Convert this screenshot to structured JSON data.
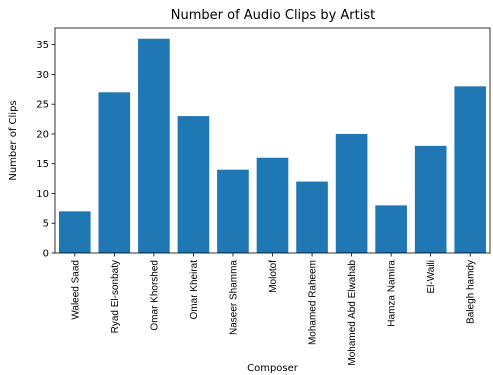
{
  "chart_data": {
    "type": "bar",
    "title": "Number of Audio Clips by Artist",
    "xlabel": "Composer",
    "ylabel": "Number of Clips",
    "categories": [
      "Waleed Saad",
      "Ryad El-sonbaty",
      "Omar Khorshed",
      "Omar Kheirat",
      "Naseer Shamma",
      "Molotof",
      "Mohamed Raheem",
      "Mohamed Abd Elwahab",
      "Hamza Namira",
      "El-Waili",
      "Balegh hamdy"
    ],
    "values": [
      7,
      27,
      36,
      23,
      14,
      16,
      12,
      20,
      8,
      18,
      28
    ],
    "ylim": [
      0,
      37.8
    ],
    "yticks": [
      0,
      5,
      10,
      15,
      20,
      25,
      30,
      35
    ],
    "grid": false,
    "bar_color": "#1f77b4"
  }
}
